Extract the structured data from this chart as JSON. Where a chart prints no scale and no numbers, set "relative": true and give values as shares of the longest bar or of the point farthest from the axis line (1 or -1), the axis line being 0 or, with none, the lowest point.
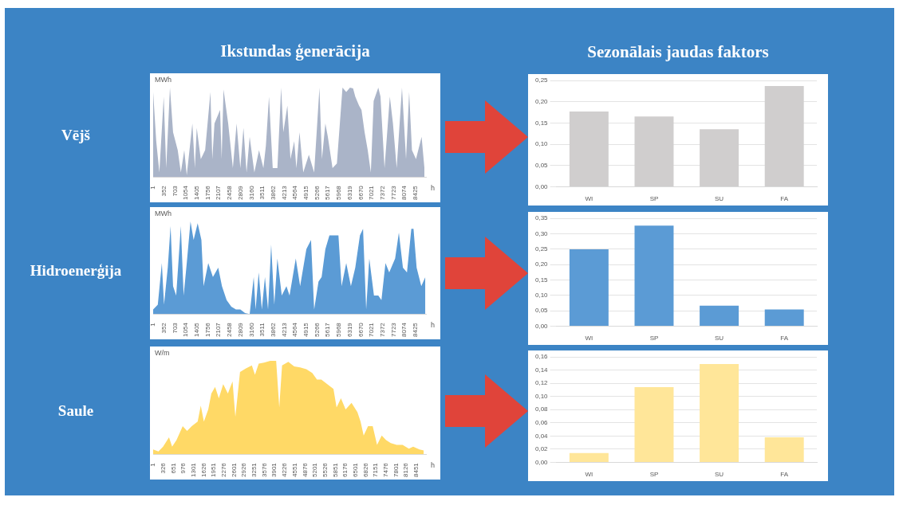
{
  "chart_data": [
    {
      "type": "area",
      "title": "Ikstundas ģenerācija",
      "annotations": [
        "Vējš"
      ],
      "ylabel": "MWh",
      "xlabel": "h",
      "relative": true,
      "xlim": [
        1,
        8760
      ],
      "xticks": [
        1,
        352,
        703,
        1054,
        1405,
        1756,
        2107,
        2458,
        2809,
        3160,
        3511,
        3862,
        4213,
        4564,
        4915,
        5266,
        5617,
        5968,
        6319,
        6670,
        7021,
        7372,
        7723,
        8074,
        8425
      ],
      "x": [
        1,
        100,
        200,
        340,
        420,
        540,
        640,
        790,
        890,
        1000,
        1080,
        1260,
        1340,
        1400,
        1530,
        1670,
        1840,
        1900,
        1970,
        2150,
        2200,
        2260,
        2410,
        2560,
        2680,
        2800,
        2900,
        3000,
        3100,
        3250,
        3400,
        3540,
        3620,
        3720,
        3840,
        3990,
        4110,
        4180,
        4310,
        4410,
        4530,
        4600,
        4700,
        4820,
        5000,
        5170,
        5340,
        5420,
        5530,
        5610,
        5760,
        5900,
        6080,
        6200,
        6320,
        6420,
        6490,
        6610,
        6690,
        6790,
        6890,
        6990,
        7080,
        7230,
        7300,
        7430,
        7600,
        7700,
        7820,
        7990,
        8120,
        8220,
        8310,
        8440,
        8620,
        8710
      ],
      "values": [
        0.95,
        0.4,
        0.05,
        0.9,
        0.1,
        1.0,
        0.5,
        0.3,
        0.05,
        0.3,
        0.02,
        0.6,
        0.1,
        0.55,
        0.2,
        0.3,
        0.95,
        0.2,
        0.6,
        0.75,
        0.2,
        0.98,
        0.6,
        0.1,
        0.6,
        0.1,
        0.55,
        0.05,
        0.45,
        0.05,
        0.3,
        0.1,
        0.35,
        0.9,
        0.1,
        0.1,
        1.0,
        0.5,
        0.8,
        0.2,
        0.4,
        0.1,
        0.5,
        0.05,
        0.25,
        0.05,
        1.0,
        0.2,
        0.6,
        0.45,
        0.1,
        0.15,
        1.0,
        0.95,
        1.0,
        0.99,
        0.9,
        0.8,
        0.75,
        0.5,
        0.3,
        0.05,
        0.85,
        1.0,
        0.9,
        0.1,
        0.9,
        0.6,
        0.1,
        1.0,
        0.2,
        0.95,
        0.3,
        0.2,
        0.45,
        0.1
      ],
      "color": "#aab4c8"
    },
    {
      "type": "bar",
      "title": "Sezonālais jaudas faktors",
      "categories": [
        "WI",
        "SP",
        "SU",
        "FA"
      ],
      "values": [
        0.177,
        0.165,
        0.135,
        0.237
      ],
      "color": "#d0cece",
      "ylim": [
        0,
        0.25
      ],
      "yticks": [
        {
          "value": 0,
          "label": "0,00"
        },
        {
          "value": 0.05,
          "label": "0,05"
        },
        {
          "value": 0.1,
          "label": "0,10"
        },
        {
          "value": 0.15,
          "label": "0,15"
        },
        {
          "value": 0.2,
          "label": "0,20"
        },
        {
          "value": 0.25,
          "label": "0,25"
        }
      ],
      "grid": "y"
    },
    {
      "type": "area",
      "annotations": [
        "Hidroenerģija"
      ],
      "ylabel": "MWh",
      "xlabel": "h",
      "relative": true,
      "xlim": [
        1,
        8760
      ],
      "xticks": [
        1,
        352,
        703,
        1054,
        1405,
        1756,
        2107,
        2458,
        2809,
        3160,
        3511,
        3862,
        4213,
        4564,
        4915,
        5266,
        5617,
        5968,
        6319,
        6670,
        7021,
        7372,
        7723,
        8074,
        8425
      ],
      "x": [
        1,
        150,
        280,
        350,
        470,
        560,
        640,
        740,
        890,
        980,
        1080,
        1200,
        1300,
        1430,
        1550,
        1620,
        1770,
        1920,
        2090,
        2210,
        2360,
        2510,
        2660,
        2800,
        2950,
        3100,
        3230,
        3290,
        3390,
        3490,
        3590,
        3690,
        3790,
        3890,
        3990,
        4130,
        4280,
        4380,
        4580,
        4720,
        4920,
        5070,
        5170,
        5310,
        5410,
        5530,
        5660,
        5800,
        5950,
        6050,
        6200,
        6350,
        6490,
        6640,
        6740,
        6840,
        6940,
        7090,
        7230,
        7330,
        7460,
        7580,
        7770,
        7890,
        8020,
        8150,
        8290,
        8360,
        8460,
        8610,
        8740
      ],
      "values": [
        0.05,
        0.1,
        0.55,
        0.1,
        0.5,
        0.95,
        0.3,
        0.2,
        0.95,
        0.2,
        0.55,
        1.0,
        0.8,
        0.98,
        0.8,
        0.3,
        0.55,
        0.4,
        0.5,
        0.3,
        0.15,
        0.08,
        0.05,
        0.05,
        0.01,
        0.0,
        0.4,
        0.05,
        0.45,
        0.05,
        0.4,
        0.05,
        0.75,
        0.1,
        0.6,
        0.2,
        0.3,
        0.2,
        0.6,
        0.3,
        0.7,
        0.8,
        0.05,
        0.35,
        0.4,
        0.7,
        0.85,
        0.85,
        0.85,
        0.3,
        0.55,
        0.3,
        0.5,
        0.85,
        0.92,
        0.05,
        0.6,
        0.2,
        0.2,
        0.15,
        0.55,
        0.45,
        0.6,
        0.88,
        0.5,
        0.45,
        0.92,
        0.92,
        0.5,
        0.3,
        0.4
      ],
      "color": "#5b9bd5"
    },
    {
      "type": "bar",
      "categories": [
        "WI",
        "SP",
        "SU",
        "FA"
      ],
      "values": [
        0.249,
        0.326,
        0.066,
        0.054
      ],
      "color": "#5b9bd5",
      "ylim": [
        0,
        0.35
      ],
      "yticks": [
        {
          "value": 0,
          "label": "0,00"
        },
        {
          "value": 0.05,
          "label": "0,05"
        },
        {
          "value": 0.1,
          "label": "0,10"
        },
        {
          "value": 0.15,
          "label": "0,15"
        },
        {
          "value": 0.2,
          "label": "0,20"
        },
        {
          "value": 0.25,
          "label": "0,25"
        },
        {
          "value": 0.3,
          "label": "0,30"
        },
        {
          "value": 0.35,
          "label": "0,35"
        }
      ],
      "grid": "y"
    },
    {
      "type": "area",
      "annotations": [
        "Saule"
      ],
      "ylabel": "W/m",
      "xlabel": "h",
      "relative": true,
      "xlim": [
        1,
        8760
      ],
      "xticks": [
        1,
        326,
        651,
        976,
        1301,
        1626,
        1951,
        2276,
        2601,
        2926,
        3251,
        3576,
        3901,
        4226,
        4551,
        4876,
        5201,
        5526,
        5851,
        6176,
        6501,
        6826,
        7151,
        7476,
        7801,
        8126,
        8451
      ],
      "x": [
        1,
        170,
        320,
        510,
        610,
        750,
        950,
        1090,
        1240,
        1430,
        1530,
        1630,
        1770,
        1870,
        1990,
        2110,
        2250,
        2400,
        2550,
        2640,
        2790,
        2980,
        3170,
        3270,
        3390,
        3560,
        3760,
        3950,
        4050,
        4140,
        4340,
        4530,
        4720,
        4920,
        5110,
        5260,
        5400,
        5590,
        5790,
        5890,
        6030,
        6180,
        6370,
        6560,
        6660,
        6760,
        6900,
        7050,
        7190,
        7340,
        7480,
        7630,
        7820,
        8010,
        8210,
        8350,
        8550,
        8690
      ],
      "values": [
        0.05,
        0.03,
        0.08,
        0.18,
        0.08,
        0.15,
        0.3,
        0.25,
        0.3,
        0.35,
        0.52,
        0.35,
        0.48,
        0.65,
        0.72,
        0.6,
        0.75,
        0.65,
        0.78,
        0.4,
        0.88,
        0.92,
        0.95,
        0.85,
        0.97,
        0.98,
        1.0,
        1.0,
        0.5,
        0.95,
        0.99,
        0.94,
        0.93,
        0.91,
        0.87,
        0.8,
        0.8,
        0.75,
        0.7,
        0.5,
        0.6,
        0.48,
        0.55,
        0.45,
        0.35,
        0.2,
        0.3,
        0.3,
        0.1,
        0.2,
        0.15,
        0.12,
        0.1,
        0.1,
        0.06,
        0.08,
        0.05,
        0.04
      ],
      "color": "#ffd966"
    },
    {
      "type": "bar",
      "categories": [
        "WI",
        "SP",
        "SU",
        "FA"
      ],
      "values": [
        0.014,
        0.114,
        0.149,
        0.038
      ],
      "color": "#ffe699",
      "ylim": [
        0,
        0.16
      ],
      "yticks": [
        {
          "value": 0,
          "label": "0,00"
        },
        {
          "value": 0.02,
          "label": "0,02"
        },
        {
          "value": 0.04,
          "label": "0,04"
        },
        {
          "value": 0.06,
          "label": "0,06"
        },
        {
          "value": 0.08,
          "label": "0,08"
        },
        {
          "value": 0.1,
          "label": "0,10"
        },
        {
          "value": 0.12,
          "label": "0,12"
        },
        {
          "value": 0.14,
          "label": "0,14"
        },
        {
          "value": 0.16,
          "label": "0,16"
        }
      ],
      "grid": "y"
    }
  ]
}
